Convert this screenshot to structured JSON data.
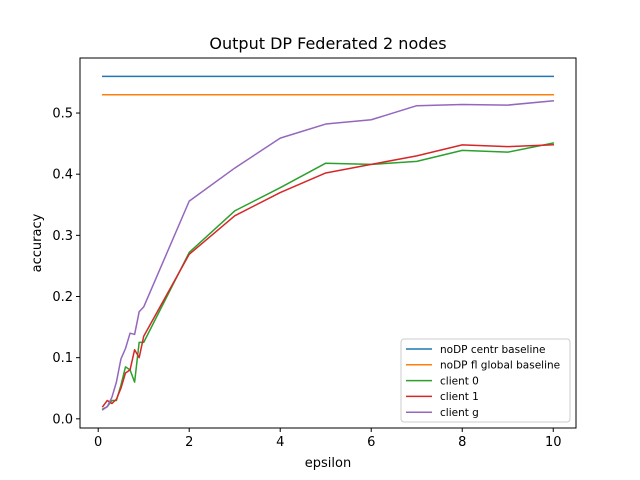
{
  "chart_data": {
    "type": "line",
    "title": "Output DP Federated 2 nodes",
    "xlabel": "epsilon",
    "ylabel": "accuracy",
    "xlim": [
      -0.4,
      10.5
    ],
    "ylim": [
      -0.015,
      0.59
    ],
    "xticks": [
      0,
      2,
      4,
      6,
      8,
      10
    ],
    "yticks": [
      0.0,
      0.1,
      0.2,
      0.3,
      0.4,
      0.5
    ],
    "xtick_labels": [
      "0",
      "2",
      "4",
      "6",
      "8",
      "10"
    ],
    "ytick_labels": [
      "0.0",
      "0.1",
      "0.2",
      "0.3",
      "0.4",
      "0.5"
    ],
    "grid": false,
    "legend_position": "lower-right",
    "series": [
      {
        "name": "noDP centr baseline",
        "color": "#1f77b4",
        "x": [
          0.1,
          10
        ],
        "y": [
          0.56,
          0.56
        ]
      },
      {
        "name": "noDP fl global baseline",
        "color": "#ff7f0e",
        "x": [
          0.1,
          10
        ],
        "y": [
          0.53,
          0.53
        ]
      },
      {
        "name": "client 0",
        "color": "#2ca02c",
        "x": [
          0.1,
          0.2,
          0.3,
          0.4,
          0.5,
          0.6,
          0.7,
          0.8,
          0.9,
          1,
          2,
          3,
          4,
          5,
          6,
          7,
          8,
          9,
          10
        ],
        "y": [
          0.016,
          0.02,
          0.03,
          0.03,
          0.055,
          0.085,
          0.08,
          0.06,
          0.125,
          0.125,
          0.272,
          0.34,
          0.378,
          0.418,
          0.416,
          0.421,
          0.439,
          0.436,
          0.451
        ]
      },
      {
        "name": "client 1",
        "color": "#d62728",
        "x": [
          0.1,
          0.2,
          0.3,
          0.4,
          0.5,
          0.6,
          0.7,
          0.8,
          0.9,
          1,
          2,
          3,
          4,
          5,
          6,
          7,
          8,
          9,
          10
        ],
        "y": [
          0.02,
          0.03,
          0.025,
          0.032,
          0.05,
          0.075,
          0.08,
          0.113,
          0.1,
          0.135,
          0.269,
          0.332,
          0.37,
          0.402,
          0.416,
          0.43,
          0.448,
          0.445,
          0.448
        ]
      },
      {
        "name": "client g",
        "color": "#9467bd",
        "x": [
          0.1,
          0.2,
          0.3,
          0.4,
          0.5,
          0.6,
          0.7,
          0.8,
          0.9,
          1,
          2,
          3,
          4,
          5,
          6,
          7,
          8,
          9,
          10
        ],
        "y": [
          0.015,
          0.02,
          0.035,
          0.06,
          0.098,
          0.115,
          0.14,
          0.138,
          0.175,
          0.183,
          0.356,
          0.41,
          0.459,
          0.482,
          0.489,
          0.512,
          0.514,
          0.513,
          0.52
        ]
      }
    ]
  }
}
